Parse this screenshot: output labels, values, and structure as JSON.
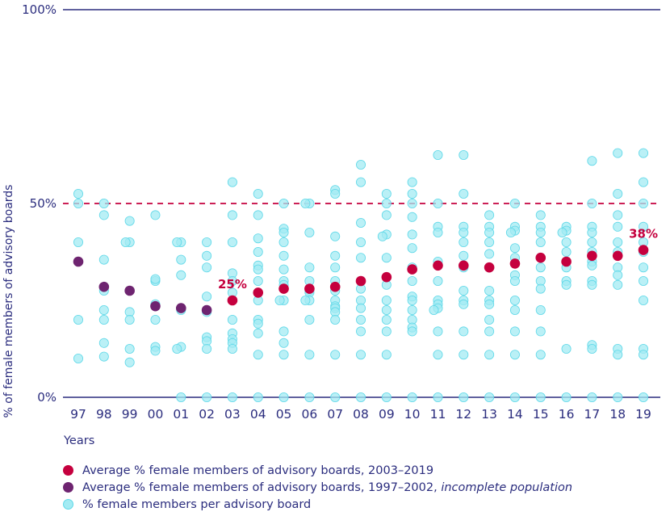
{
  "chart_data": {
    "type": "scatter",
    "ylabel": "% of female members of advisory boards",
    "xlabel": "Years",
    "ylim": [
      0,
      100
    ],
    "y_ticks": [
      "0%",
      "50%",
      "100%"
    ],
    "x": [
      "97",
      "98",
      "99",
      "00",
      "01",
      "02",
      "03",
      "04",
      "05",
      "06",
      "07",
      "08",
      "09",
      "10",
      "11",
      "12",
      "13",
      "14",
      "15",
      "16",
      "17",
      "18",
      "19"
    ],
    "reference_line": {
      "y": 50,
      "style": "dashed",
      "color": "#c5003e"
    },
    "colors": {
      "avg_red": "#c5003e",
      "avg_purple": "#6e2470",
      "board": "#5fd8e8",
      "axis": "#2b2d7e"
    },
    "annotations": [
      {
        "x": "03",
        "y": 25,
        "text": "25%"
      },
      {
        "x": "19",
        "y": 38,
        "text": "38%"
      }
    ],
    "series": [
      {
        "name": "Average % female members of advisory boards, 2003–2019",
        "values": [
          null,
          null,
          null,
          null,
          null,
          null,
          25,
          27,
          28,
          28,
          28.5,
          30,
          31,
          33,
          34,
          34,
          33.5,
          34.5,
          36,
          35,
          36.5,
          36.5,
          38
        ]
      },
      {
        "name": "Average % female members of advisory boards, 1997–2002,",
        "name_suffix": "incomplete population",
        "values": [
          35,
          28.5,
          27.5,
          23.5,
          23,
          22.5,
          null,
          null,
          null,
          null,
          null,
          null,
          null,
          null,
          null,
          null,
          null,
          null,
          null,
          null,
          null,
          null,
          null
        ]
      },
      {
        "name": "% female members per advisory board",
        "points": {
          "97": [
            52.5,
            50,
            40,
            20,
            10
          ],
          "98": [
            50,
            47,
            35.5,
            27.5,
            22.5,
            20,
            14,
            10.5
          ],
          "99": [
            45.5,
            40,
            40,
            22,
            20,
            12.5,
            9
          ],
          "00": [
            47,
            30,
            30.5,
            24,
            20,
            13,
            12
          ],
          "01": [
            40,
            40,
            35.5,
            31.5,
            22.5,
            13,
            12.5,
            0
          ],
          "02": [
            40,
            36.5,
            33.5,
            26,
            22,
            15.5,
            14.5,
            12.5,
            0
          ],
          "03": [
            55.5,
            47,
            40,
            32,
            30,
            27,
            20,
            16.5,
            15,
            14,
            12.5,
            0
          ],
          "04": [
            52.5,
            47,
            41,
            37.5,
            34,
            33,
            30,
            25,
            20,
            19,
            16.5,
            11,
            0
          ],
          "05": [
            50,
            43.5,
            42.5,
            40,
            36.5,
            33,
            30,
            29,
            25,
            25,
            17,
            14,
            11,
            0
          ],
          "06": [
            50,
            50,
            42.5,
            33.5,
            30,
            27.5,
            27,
            25,
            25,
            20,
            11,
            0
          ],
          "07": [
            53.5,
            52.5,
            41.5,
            36.5,
            33.5,
            30,
            27.5,
            25,
            23.5,
            23,
            22,
            20,
            11,
            0
          ],
          "08": [
            60,
            55.5,
            45,
            40,
            36,
            30,
            28,
            25,
            23,
            20,
            17,
            11,
            0
          ],
          "09": [
            52.5,
            50,
            47,
            42,
            41.5,
            36,
            29,
            25,
            22.5,
            20,
            17,
            11,
            0
          ],
          "10": [
            55.5,
            52.5,
            50,
            46.5,
            42,
            38.5,
            33.5,
            30,
            26,
            25,
            22.5,
            20,
            18,
            17,
            0
          ],
          "11": [
            62.5,
            50,
            44,
            42.5,
            35,
            30,
            25,
            24,
            23,
            22.5,
            17,
            11,
            0
          ],
          "12": [
            62.5,
            52.5,
            44,
            42.5,
            40,
            36.5,
            33.5,
            27.5,
            25,
            24,
            17,
            11,
            0
          ],
          "13": [
            47,
            44,
            42.5,
            40,
            37,
            33.5,
            27.5,
            25,
            24,
            20,
            17,
            11,
            0
          ],
          "14": [
            50,
            44,
            43,
            42.5,
            38.5,
            36,
            31.5,
            30,
            25,
            22.5,
            17,
            11,
            0
          ],
          "15": [
            47,
            44,
            42.5,
            40,
            36,
            33.5,
            30,
            28,
            22.5,
            17,
            11,
            0
          ],
          "16": [
            44,
            43,
            42.5,
            40,
            37.5,
            33.5,
            30,
            29,
            12.5,
            0
          ],
          "17": [
            61,
            50,
            44,
            42.5,
            40,
            37.5,
            35,
            34,
            30,
            29,
            13.5,
            12.5,
            0
          ],
          "18": [
            63,
            52.5,
            47,
            44,
            40,
            37.5,
            33.5,
            31.5,
            29,
            12.5,
            11,
            0
          ],
          "19": [
            63,
            55.5,
            50,
            44,
            40,
            37.5,
            33.5,
            30,
            25,
            12.5,
            11,
            0
          ]
        }
      }
    ]
  }
}
